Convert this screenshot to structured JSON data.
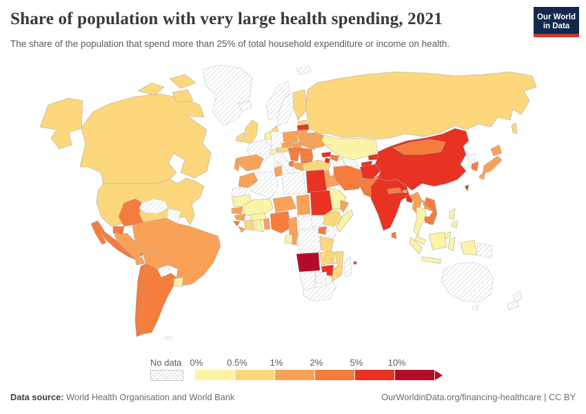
{
  "header": {
    "title": "Share of population with very large health spending, 2021",
    "subtitle": "The share of the population that spend more than 25% of total household expenditure or income on health.",
    "logo": {
      "line1": "Our World",
      "line2": "in Data",
      "bg_color": "#12294D",
      "bar_color": "#CE3A2E"
    }
  },
  "legend": {
    "no_data_label": "No data",
    "tick_labels": [
      "0%",
      "0.5%",
      "1%",
      "2%",
      "5%",
      "10%"
    ]
  },
  "footer": {
    "source_label": "Data source:",
    "source_text": " World Health Organisation and World Bank",
    "right_text": "OurWorldinData.org/financing-healthcare | CC BY"
  },
  "chart_data": {
    "type": "choropleth_map",
    "title": "Share of population with very large health spending, 2021",
    "unit": "share of population spending >25% of household budget on health",
    "year": "2021",
    "legend_ticks": [
      "0%",
      "0.5%",
      "1%",
      "2%",
      "5%",
      "10%"
    ],
    "no_data_style": "hatched",
    "bins": [
      {
        "label": "0-0.5%",
        "color": "#FCF3A6"
      },
      {
        "label": "0.5-1%",
        "color": "#FDD77C"
      },
      {
        "label": "1-2%",
        "color": "#F9A257"
      },
      {
        "label": "2-5%",
        "color": "#F57C3C"
      },
      {
        "label": "5-10%",
        "color": "#E83323"
      },
      {
        "label": ">10%",
        "color": "#B40C26"
      }
    ],
    "countries": {
      "Canada": "0.5-1%",
      "United States": "0.5-1%",
      "Greenland": "No data",
      "Mexico": "2-5%",
      "Guatemala": "1-2%",
      "Honduras": "No data",
      "Nicaragua": "1-2%",
      "Costa Rica": "2-5%",
      "Panama": "1-2%",
      "Cuba": "No data",
      "Jamaica": "2-5%",
      "Dominican Republic": "1-2%",
      "Puerto Rico": "No data",
      "Colombia": "2-5%",
      "Venezuela": "No data",
      "Guyana": "No data",
      "Ecuador": "2-5%",
      "Peru": "1-2%",
      "Brazil": "1-2%",
      "Bolivia": "1-2%",
      "Paraguay": "No data",
      "Uruguay": "0-0.5%",
      "Argentina": "2-5%",
      "Chile": "2-5%",
      "Falkland Islands": "No data",
      "Iceland": "No data",
      "Ireland": "0.5-1%",
      "United Kingdom": "0.5-1%",
      "Norway": "No data",
      "Sweden": "No data",
      "Finland": "0.5-1%",
      "Denmark": "0.5-1%",
      "France": "No data",
      "Germany": "No data",
      "Netherlands": "0-0.5%",
      "Switzerland": "0-0.5%",
      "Austria": "0.5-1%",
      "Italy": "No data",
      "Spain": "1-2%",
      "Portugal": "1-2%",
      "Poland": "1-2%",
      "Czechia": "1-2%",
      "Slovakia": "1-2%",
      "Hungary": "2-5%",
      "Romania": "2-5%",
      "Bulgaria": "2-5%",
      "Serbia": "2-5%",
      "Albania": "2-5%",
      "Greece": "1-2%",
      "Ukraine": "1-2%",
      "Belarus": "1-2%",
      "Moldova": "1-2%",
      "Estonia": "0.5-1%",
      "Latvia": "5-10%",
      "Lithuania": "1-2%",
      "Svalbard": "No data",
      "Russia": "0.5-1%",
      "Kazakhstan": "0-0.5%",
      "Uzbekistan": "No data",
      "Turkmenistan": "No data",
      "Kyrgyzstan": "5-10%",
      "Tajikistan": "5-10%",
      "Turkey": "0.5-1%",
      "Georgia": "5-10%",
      "Azerbaijan": "2-5%",
      "Armenia": "5-10%",
      "Syria": "1-2%",
      "Iraq": "1-2%",
      "Iran": "2-5%",
      "Afghanistan": "5-10%",
      "Pakistan": "2-5%",
      "Saudi Arabia": "0-0.5%",
      "Yemen": "0-0.5%",
      "Oman": "1-2%",
      "India": "5-10%",
      "Nepal": "2-5%",
      "Bhutan": "1-2%",
      "Bangladesh": "5-10%",
      "Sri Lanka": "2-5%",
      "China": "5-10%",
      "Mongolia": "2-5%",
      "Taiwan": "5-10%",
      "North Korea": "No data",
      "South Korea": "2-5%",
      "Japan": "1-2%",
      "Myanmar": "1-2%",
      "Laos": "1-2%",
      "Thailand": "0-0.5%",
      "Vietnam": "2-5%",
      "Cambodia": "2-5%",
      "Malaysia": "0-0.5%",
      "Indonesia": "0-0.5%",
      "Philippines": "0-0.5%",
      "Papua New Guinea": "No data",
      "Morocco": "1-2%",
      "Western Sahara": "No data",
      "Algeria": "No data",
      "Tunisia": "1-2%",
      "Libya": "No data",
      "Egypt": "5-10%",
      "Mauritania": "0-0.5%",
      "Mali": "0-0.5%",
      "Niger": "1-2%",
      "Chad": "1-2%",
      "Sudan": "5-10%",
      "Ethiopia": "0.5-1%",
      "Somalia": "0-0.5%",
      "Senegal": "1-2%",
      "Guinea": "1-2%",
      "Sierra Leone": "2-5%",
      "Liberia": "1-2%",
      "Ivory Coast": "0.5-1%",
      "Ghana": "0-0.5%",
      "Burkina Faso": "0-0.5%",
      "Benin": "1-2%",
      "Nigeria": "2-5%",
      "Cameroon": "1-2%",
      "Central African Republic": "No data",
      "South Sudan": "No data",
      "Uganda": "2-5%",
      "Kenya": "No data",
      "Gabon": "0-0.5%",
      "Congo": "1-2%",
      "Democratic Republic of Congo": "No data",
      "Tanzania": "0.5-1%",
      "Angola": ">10%",
      "Zambia": "0.5-1%",
      "Malawi": "0-0.5%",
      "Mozambique": "0.5-1%",
      "Zimbabwe": "5-10%",
      "Namibia": "No data",
      "Botswana": "No data",
      "South Africa": "No data",
      "Madagascar": "No data",
      "Mauritius": "5-10%",
      "Australia": "No data",
      "New Zealand": "No data"
    }
  }
}
